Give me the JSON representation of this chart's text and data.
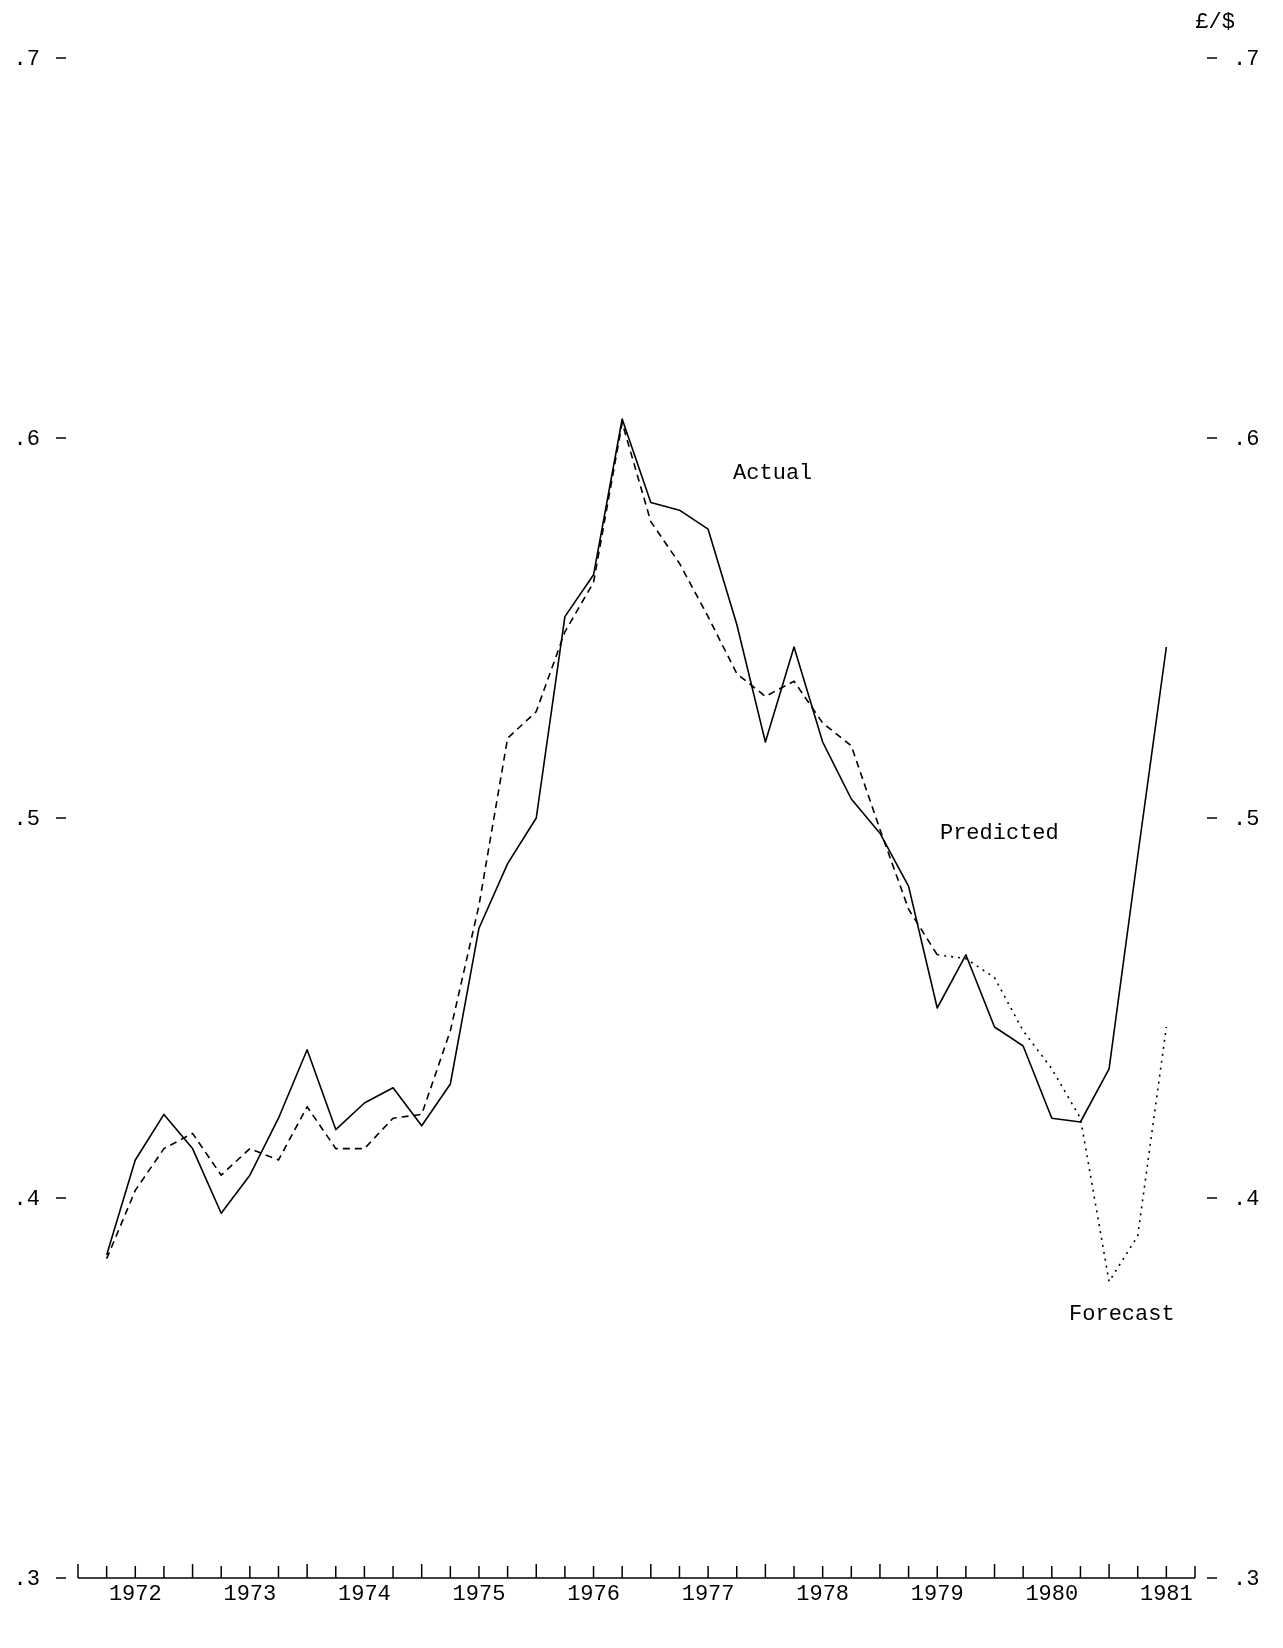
{
  "chart_data": {
    "type": "line",
    "y2label": "£/$",
    "x": [
      1972.25,
      1972.5,
      1972.75,
      1973,
      1973.25,
      1973.5,
      1973.75,
      1974,
      1974.25,
      1974.5,
      1974.75,
      1975,
      1975.25,
      1975.5,
      1975.75,
      1976,
      1976.25,
      1976.5,
      1976.75,
      1977,
      1977.25,
      1977.5,
      1977.75,
      1978,
      1978.25,
      1978.5,
      1978.75,
      1979,
      1979.25,
      1979.5,
      1979.75,
      1980,
      1980.25,
      1980.5,
      1980.75,
      1981,
      1981.25,
      1981.5
    ],
    "series": [
      {
        "name": "Actual",
        "color": "#000000",
        "line_style": "solid",
        "values": [
          0.385,
          0.41,
          0.422,
          0.413,
          0.396,
          0.406,
          0.421,
          0.439,
          0.418,
          0.425,
          0.429,
          0.419,
          0.43,
          0.471,
          0.488,
          0.5,
          0.553,
          0.564,
          0.605,
          0.583,
          0.581,
          0.576,
          0.551,
          0.52,
          0.545,
          0.52,
          0.505,
          0.496,
          0.482,
          0.45,
          0.464,
          0.445,
          0.44,
          0.421,
          0.42,
          0.434,
          0.49,
          0.545
        ]
      },
      {
        "name": "Predicted",
        "color": "#000000",
        "line_style": "dashed",
        "x": [
          1972.25,
          1972.5,
          1972.75,
          1973,
          1973.25,
          1973.5,
          1973.75,
          1974,
          1974.25,
          1974.5,
          1974.75,
          1975,
          1975.25,
          1975.5,
          1975.75,
          1976,
          1976.25,
          1976.5,
          1976.75,
          1977,
          1977.25,
          1977.5,
          1977.75,
          1978,
          1978.25,
          1978.5,
          1978.75,
          1979,
          1979.25,
          1979.5
        ],
        "values": [
          0.384,
          0.402,
          0.413,
          0.417,
          0.406,
          0.413,
          0.41,
          0.424,
          0.413,
          0.413,
          0.421,
          0.422,
          0.444,
          0.477,
          0.521,
          0.528,
          0.549,
          0.562,
          0.604,
          0.578,
          0.567,
          0.553,
          0.538,
          0.532,
          0.536,
          0.525,
          0.519,
          0.497,
          0.476,
          0.464
        ]
      },
      {
        "name": "Forecast",
        "color": "#000000",
        "line_style": "dotted",
        "x": [
          1979.5,
          1979.75,
          1980,
          1980.25,
          1980.5,
          1980.75,
          1981,
          1981.25,
          1981.5
        ],
        "values": [
          0.464,
          0.463,
          0.458,
          0.444,
          0.434,
          0.421,
          0.378,
          0.39,
          0.445
        ]
      }
    ],
    "xlim": [
      1972,
      1981.75
    ],
    "xticks": [
      {
        "value": 1972,
        "label": null
      },
      {
        "value": 1972.25,
        "label": null
      },
      {
        "value": 1972.5,
        "label": "1972"
      },
      {
        "value": 1972.75,
        "label": null
      },
      {
        "value": 1973,
        "label": null
      },
      {
        "value": 1973.25,
        "label": null
      },
      {
        "value": 1973.5,
        "label": "1973"
      },
      {
        "value": 1973.75,
        "label": null
      },
      {
        "value": 1974,
        "label": null
      },
      {
        "value": 1974.25,
        "label": null
      },
      {
        "value": 1974.5,
        "label": "1974"
      },
      {
        "value": 1974.75,
        "label": null
      },
      {
        "value": 1975,
        "label": null
      },
      {
        "value": 1975.25,
        "label": null
      },
      {
        "value": 1975.5,
        "label": "1975"
      },
      {
        "value": 1975.75,
        "label": null
      },
      {
        "value": 1976,
        "label": null
      },
      {
        "value": 1976.25,
        "label": null
      },
      {
        "value": 1976.5,
        "label": "1976"
      },
      {
        "value": 1976.75,
        "label": null
      },
      {
        "value": 1977,
        "label": null
      },
      {
        "value": 1977.25,
        "label": null
      },
      {
        "value": 1977.5,
        "label": "1977"
      },
      {
        "value": 1977.75,
        "label": null
      },
      {
        "value": 1978,
        "label": null
      },
      {
        "value": 1978.25,
        "label": null
      },
      {
        "value": 1978.5,
        "label": "1978"
      },
      {
        "value": 1978.75,
        "label": null
      },
      {
        "value": 1979,
        "label": null
      },
      {
        "value": 1979.25,
        "label": null
      },
      {
        "value": 1979.5,
        "label": "1979"
      },
      {
        "value": 1979.75,
        "label": null
      },
      {
        "value": 1980,
        "label": null
      },
      {
        "value": 1980.25,
        "label": null
      },
      {
        "value": 1980.5,
        "label": "1980"
      },
      {
        "value": 1980.75,
        "label": null
      },
      {
        "value": 1981,
        "label": null
      },
      {
        "value": 1981.25,
        "label": null
      },
      {
        "value": 1981.5,
        "label": "1981"
      },
      {
        "value": 1981.75,
        "label": null
      }
    ],
    "ylim": [
      0.3,
      0.7
    ],
    "yticks": [
      {
        "value": 0.3,
        "label": ".3"
      },
      {
        "value": 0.4,
        "label": ".4"
      },
      {
        "value": 0.5,
        "label": ".5"
      },
      {
        "value": 0.6,
        "label": ".6"
      },
      {
        "value": 0.7,
        "label": ".7"
      }
    ],
    "y2lim": [
      0.3,
      0.7
    ],
    "y2ticks": [
      {
        "value": 0.3,
        "label": ".3"
      },
      {
        "value": 0.4,
        "label": ".4"
      },
      {
        "value": 0.5,
        "label": ".5"
      },
      {
        "value": 0.6,
        "label": ".6"
      },
      {
        "value": 0.7,
        "label": ".7"
      }
    ],
    "grid": false,
    "legend": false,
    "marker": "none"
  }
}
